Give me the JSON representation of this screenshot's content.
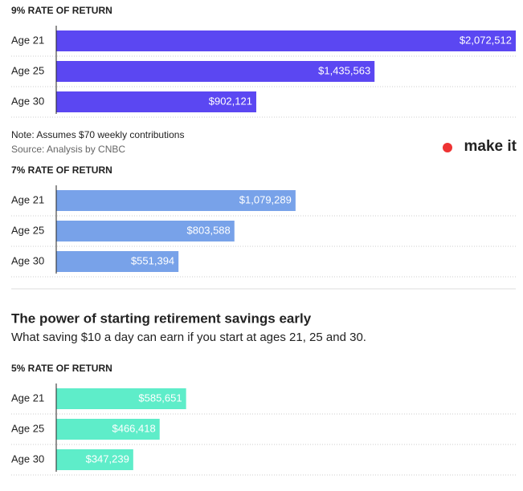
{
  "title": "The power of starting retirement savings early",
  "subtitle": "What saving $10 a day can earn if you start at ages 21, 25 and 30.",
  "note": "Note: Assumes $70 weekly contributions",
  "source": "Source: Analysis by CNBC",
  "logo": "make it",
  "chart_data": [
    {
      "type": "bar",
      "orientation": "horizontal",
      "title": "9% RATE OF RETURN",
      "categories": [
        "Age 21",
        "Age 25",
        "Age 30"
      ],
      "values": [
        2072512,
        1435563,
        902121
      ],
      "value_labels": [
        "$2,072,512",
        "$1,435,563",
        "$902,121"
      ],
      "color": "#5b47f2",
      "xlim": [
        0,
        2072512
      ]
    },
    {
      "type": "bar",
      "orientation": "horizontal",
      "title": "7% RATE OF RETURN",
      "categories": [
        "Age 21",
        "Age 25",
        "Age 30"
      ],
      "values": [
        1079289,
        803588,
        551394
      ],
      "value_labels": [
        "$1,079,289",
        "$803,588",
        "$551,394"
      ],
      "color": "#78a2e9",
      "xlim": [
        0,
        2072512
      ]
    },
    {
      "type": "bar",
      "orientation": "horizontal",
      "title": "5% RATE OF RETURN",
      "categories": [
        "Age 21",
        "Age 25",
        "Age 30"
      ],
      "values": [
        585651,
        466418,
        347239
      ],
      "value_labels": [
        "$585,651",
        "$466,418",
        "$347,239"
      ],
      "color": "#5eedc9",
      "xlim": [
        0,
        2072512
      ]
    }
  ]
}
